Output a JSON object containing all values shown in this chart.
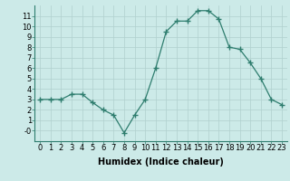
{
  "x": [
    0,
    1,
    2,
    3,
    4,
    5,
    6,
    7,
    8,
    9,
    10,
    11,
    12,
    13,
    14,
    15,
    16,
    17,
    18,
    19,
    20,
    21,
    22,
    23
  ],
  "y": [
    3.0,
    3.0,
    3.0,
    3.5,
    3.5,
    2.7,
    2.0,
    1.5,
    -0.2,
    1.5,
    3.0,
    6.0,
    9.5,
    10.5,
    10.5,
    11.5,
    11.5,
    10.7,
    8.0,
    7.8,
    6.5,
    5.0,
    3.0,
    2.5
  ],
  "line_color": "#2e7d6e",
  "marker": "+",
  "marker_size": 4,
  "bg_color": "#cceae8",
  "grid_color_minor": "#c0dedd",
  "grid_color_major": "#b0d0ce",
  "xlabel": "Humidex (Indice chaleur)",
  "ylim": [
    -1,
    12
  ],
  "xlim": [
    -0.5,
    23.5
  ],
  "yticks": [
    0,
    1,
    2,
    3,
    4,
    5,
    6,
    7,
    8,
    9,
    10,
    11
  ],
  "xticks": [
    0,
    1,
    2,
    3,
    4,
    5,
    6,
    7,
    8,
    9,
    10,
    11,
    12,
    13,
    14,
    15,
    16,
    17,
    18,
    19,
    20,
    21,
    22,
    23
  ],
  "xlabel_fontsize": 7,
  "tick_fontsize": 6
}
